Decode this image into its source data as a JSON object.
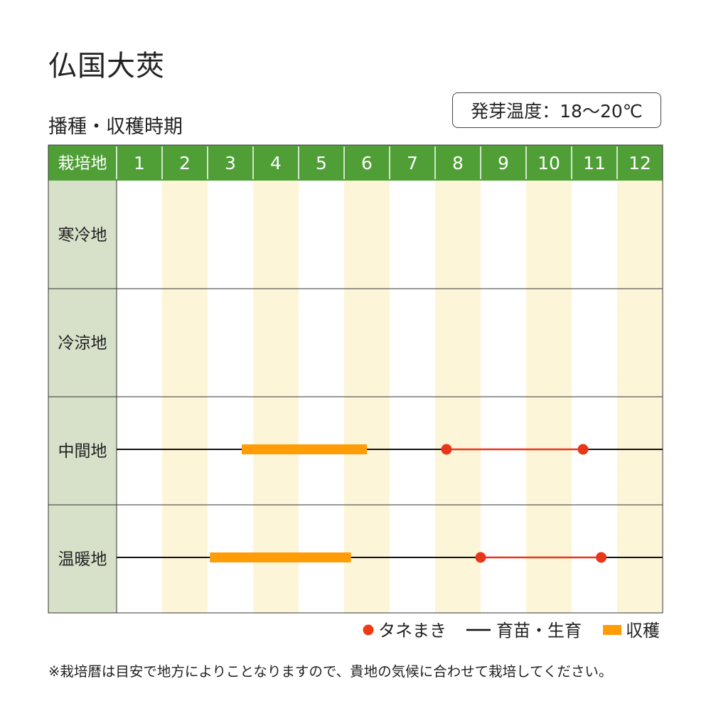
{
  "title": "仏国大莢",
  "subtitle": "播種・収穫時期",
  "temperature_label": "発芽温度：18〜20℃",
  "note": "※栽培暦は目安で地方によりことなりますので、貴地の気候に合わせて栽培してください。",
  "chart_data": {
    "type": "gantt",
    "header_label": "栽培地",
    "months": [
      "1",
      "2",
      "3",
      "4",
      "5",
      "6",
      "7",
      "8",
      "9",
      "10",
      "11",
      "12"
    ],
    "regions": [
      {
        "name": "寒冷地",
        "sowing": [],
        "growing": [],
        "harvest": []
      },
      {
        "name": "冷涼地",
        "sowing": [],
        "growing": [],
        "harvest": []
      },
      {
        "name": "中間地",
        "sowing": [
          [
            8.25,
            11.25
          ]
        ],
        "growing": [
          [
            1.0,
            13.0
          ]
        ],
        "harvest": [
          [
            3.75,
            6.5
          ]
        ]
      },
      {
        "name": "温暖地",
        "sowing": [
          [
            9.0,
            11.65
          ]
        ],
        "growing": [
          [
            1.0,
            13.0
          ]
        ],
        "harvest": [
          [
            3.05,
            6.15
          ]
        ]
      }
    ],
    "legend": [
      {
        "key": "sowing",
        "label": "タネまき",
        "color": "#ee3b11"
      },
      {
        "key": "growing",
        "label": "育苗・生育",
        "color": "#111111"
      },
      {
        "key": "harvest",
        "label": "収穫",
        "color": "#ff9c06"
      }
    ],
    "colors": {
      "header_bg": "#4f9f36",
      "region_bg": "#d7e1c9",
      "even_month_stripe": "#fdf5d8",
      "sowing_line": "#e8361a"
    }
  }
}
